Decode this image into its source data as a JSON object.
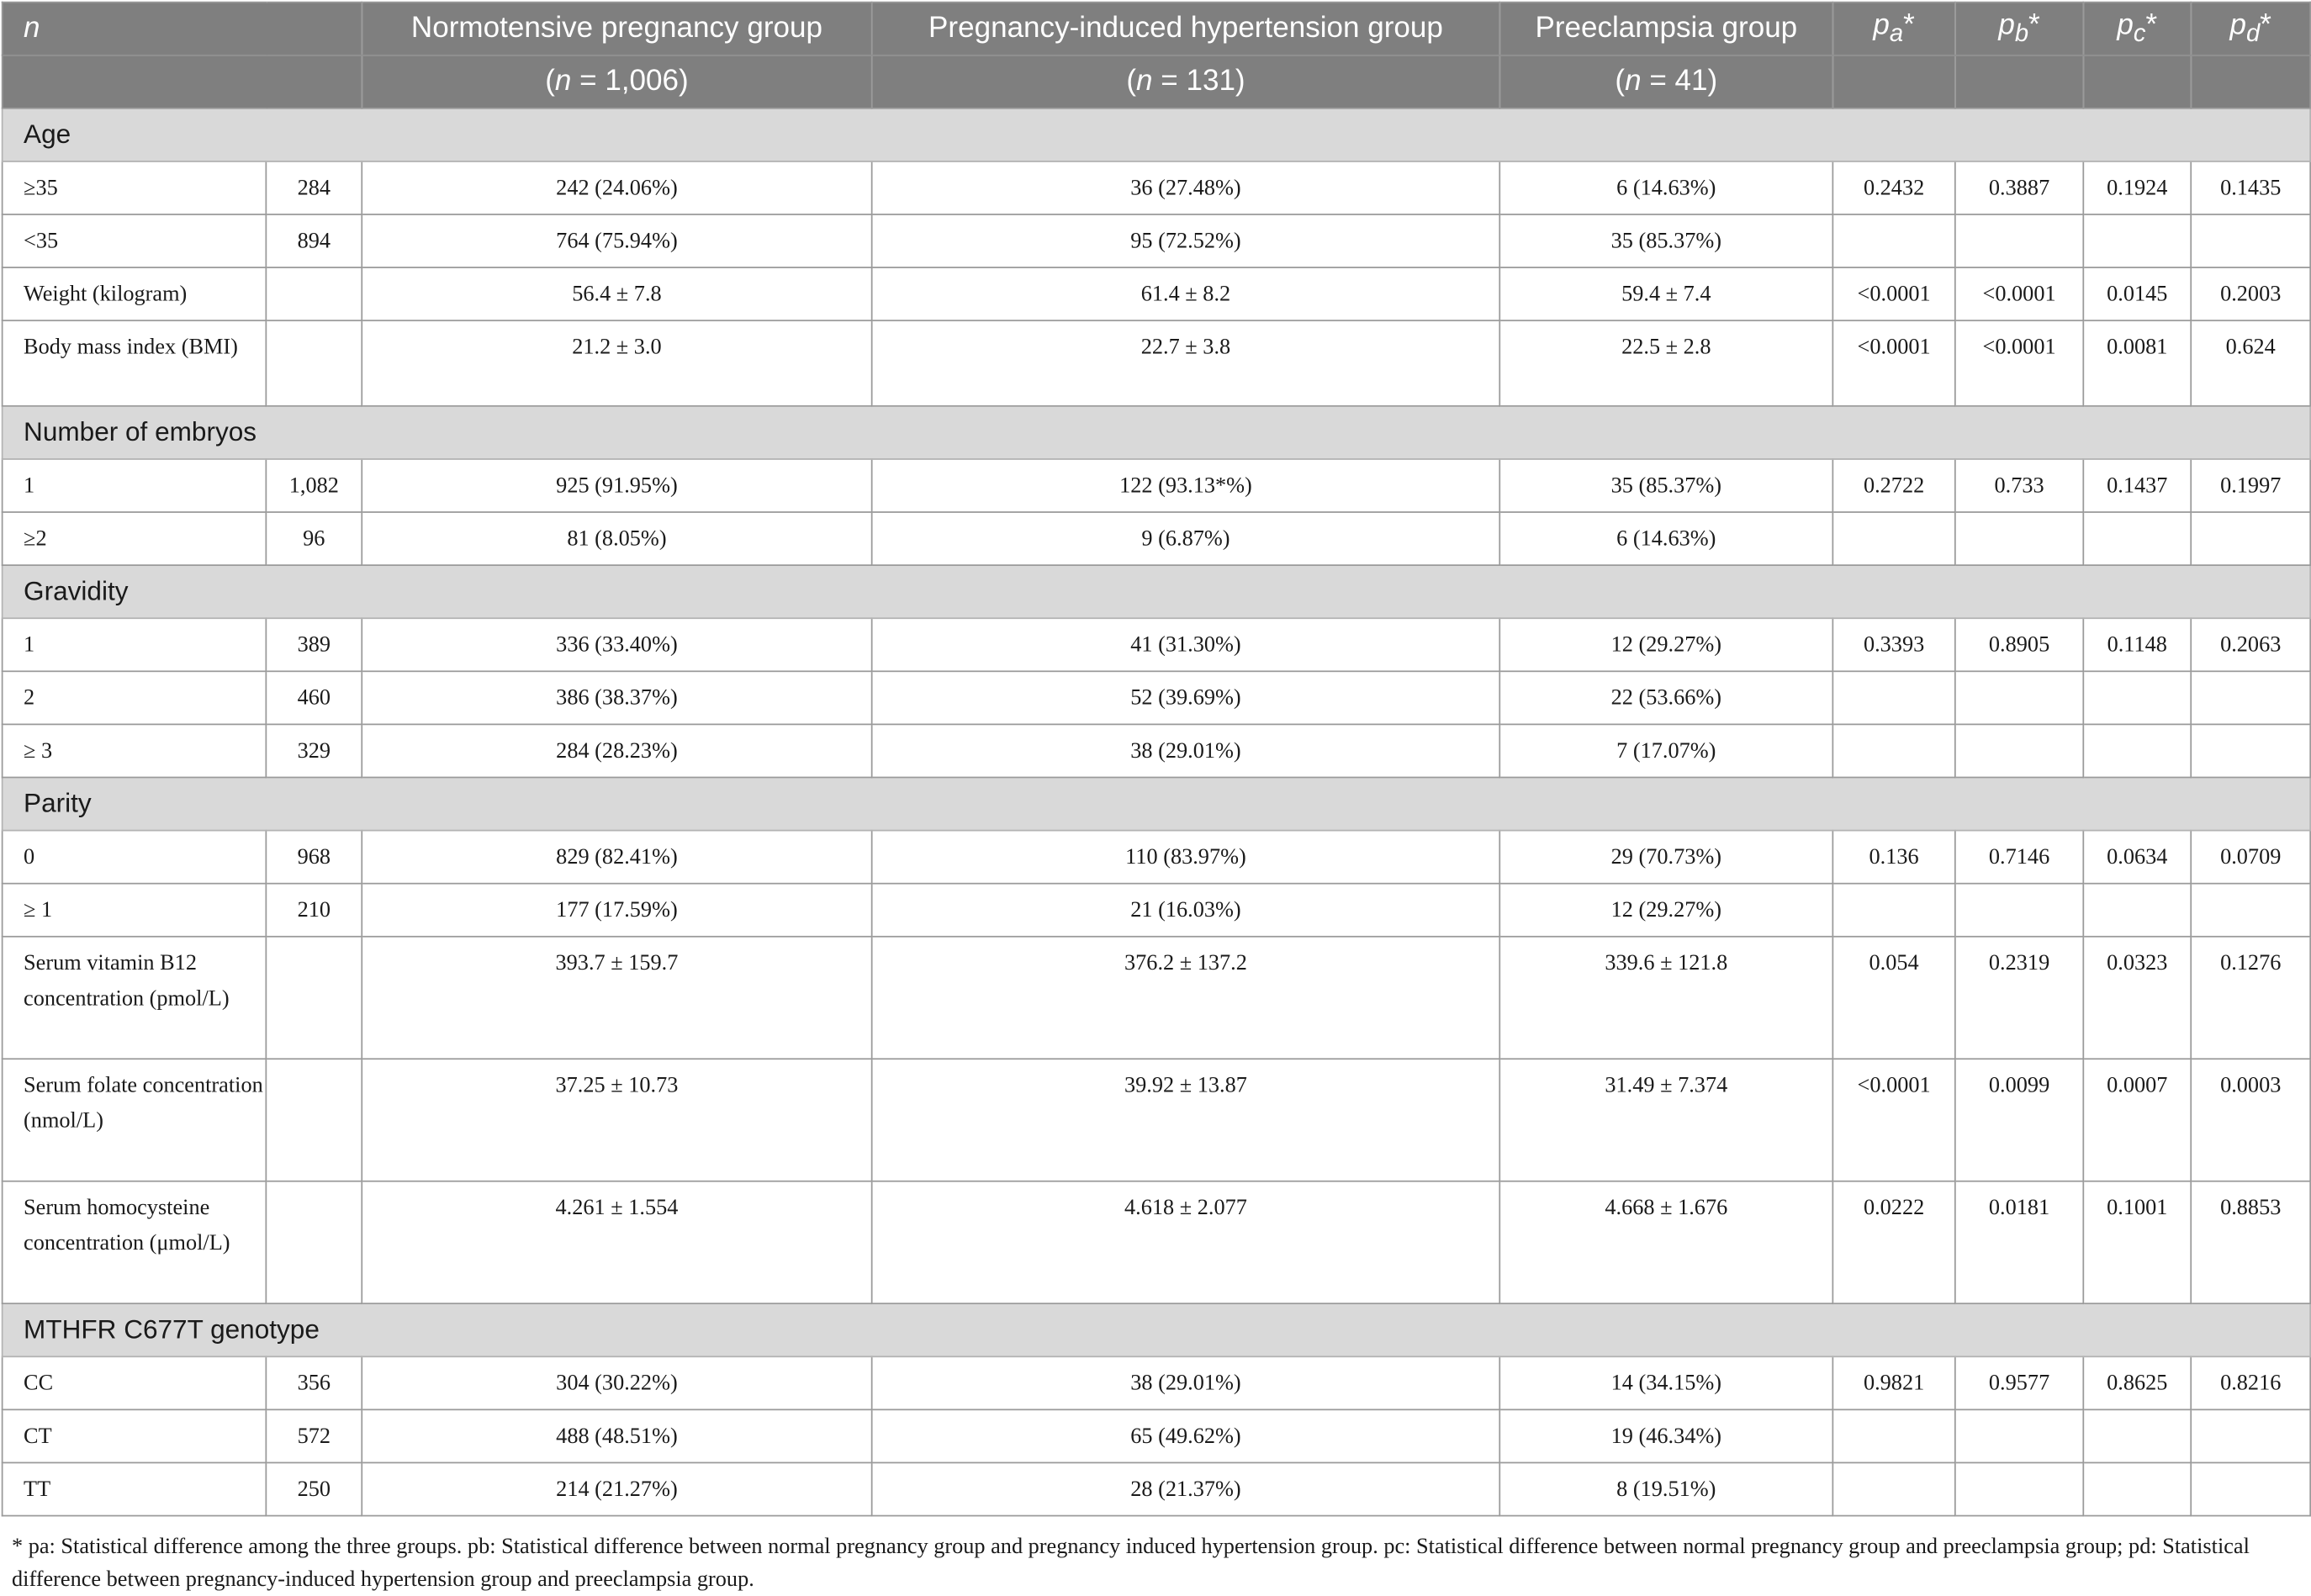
{
  "header": {
    "n_label": "n",
    "col_normo": "Normotensive pregnancy group",
    "col_pih": "Pregnancy-induced hypertension group",
    "col_pre": "Preeclampsia group",
    "p_letter": "p",
    "pa_sub": "a",
    "pb_sub": "b",
    "pc_sub": "c",
    "pd_sub": "d",
    "star": "*",
    "n_italic": "n",
    "normo_n": " = 1,006)",
    "pih_n": " = 131)",
    "pre_n": " = 41)",
    "open_paren": "("
  },
  "sections": {
    "age": "Age",
    "embryos": "Number of embryos",
    "gravidity": "Gravidity",
    "parity": "Parity",
    "mthfr": "MTHFR C677T genotype"
  },
  "rows": {
    "age_ge35": [
      "≥35",
      "284",
      "242 (24.06%)",
      "36 (27.48%)",
      "6 (14.63%)",
      "0.2432",
      "0.3887",
      "0.1924",
      "0.1435"
    ],
    "age_lt35": [
      "<35",
      "894",
      "764 (75.94%)",
      "95 (72.52%)",
      "35 (85.37%)",
      "",
      "",
      "",
      ""
    ],
    "weight": [
      "Weight (kilogram)",
      "",
      "56.4 ± 7.8",
      "61.4 ± 8.2",
      "59.4 ± 7.4",
      "<0.0001",
      "<0.0001",
      "0.0145",
      "0.2003"
    ],
    "bmi": [
      "Body mass index (BMI)",
      "",
      "21.2 ± 3.0",
      "22.7 ± 3.8",
      "22.5 ± 2.8",
      "<0.0001",
      "<0.0001",
      "0.0081",
      "0.624"
    ],
    "emb_1": [
      "1",
      "1,082",
      "925 (91.95%)",
      "122 (93.13*%)",
      "35 (85.37%)",
      "0.2722",
      "0.733",
      "0.1437",
      "0.1997"
    ],
    "emb_2": [
      "≥2",
      "96",
      "81 (8.05%)",
      "9 (6.87%)",
      "6 (14.63%)",
      "",
      "",
      "",
      ""
    ],
    "grav_1": [
      "1",
      "389",
      "336 (33.40%)",
      "41 (31.30%)",
      "12 (29.27%)",
      "0.3393",
      "0.8905",
      "0.1148",
      "0.2063"
    ],
    "grav_2": [
      "2",
      "460",
      "386 (38.37%)",
      "52 (39.69%)",
      "22 (53.66%)",
      "",
      "",
      "",
      ""
    ],
    "grav_3": [
      "≥ 3",
      "329",
      "284 (28.23%)",
      "38 (29.01%)",
      "7 (17.07%)",
      "",
      "",
      "",
      ""
    ],
    "par_0": [
      "0",
      "968",
      "829 (82.41%)",
      "110 (83.97%)",
      "29 (70.73%)",
      "0.136",
      "0.7146",
      "0.0634",
      "0.0709"
    ],
    "par_1": [
      "≥ 1",
      "210",
      "177 (17.59%)",
      "21 (16.03%)",
      "12 (29.27%)",
      "",
      "",
      "",
      ""
    ],
    "b12": [
      "Serum vitamin B12 concentration (pmol/L)",
      "",
      "393.7 ± 159.7",
      "376.2 ± 137.2",
      "339.6 ± 121.8",
      "0.054",
      "0.2319",
      "0.0323",
      "0.1276"
    ],
    "folate": [
      "Serum folate concentration (nmol/L)",
      "",
      "37.25 ± 10.73",
      "39.92 ± 13.87",
      "31.49 ± 7.374",
      "<0.0001",
      "0.0099",
      "0.0007",
      "0.0003"
    ],
    "hcy": [
      "Serum homocysteine concentration (μmol/L)",
      "",
      "4.261 ± 1.554",
      "4.618 ± 2.077",
      "4.668 ± 1.676",
      "0.0222",
      "0.0181",
      "0.1001",
      "0.8853"
    ],
    "cc": [
      "CC",
      "356",
      "304 (30.22%)",
      "38 (29.01%)",
      "14 (34.15%)",
      "0.9821",
      "0.9577",
      "0.8625",
      "0.8216"
    ],
    "ct": [
      "CT",
      "572",
      "488 (48.51%)",
      "65 (49.62%)",
      "19 (46.34%)",
      "",
      "",
      "",
      ""
    ],
    "tt": [
      "TT",
      "250",
      "214 (21.27%)",
      "28 (21.37%)",
      "8 (19.51%)",
      "",
      "",
      "",
      ""
    ]
  },
  "footnote": "* pa: Statistical difference among the three groups. pb: Statistical difference between normal pregnancy group and pregnancy induced hypertension group. pc: Statistical difference between normal pregnancy group and preeclampsia group; pd: Statistical difference between pregnancy-induced hypertension group and preeclampsia group."
}
